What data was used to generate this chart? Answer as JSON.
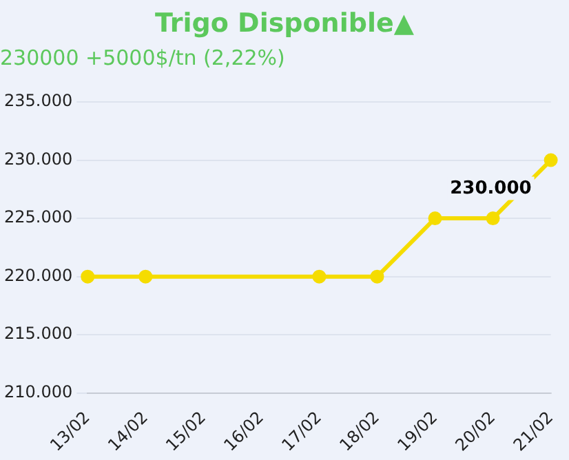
{
  "chart_data": {
    "type": "line",
    "title": "Trigo Disponible▲",
    "subtitle": "230000 +5000$/tn (2,22%)",
    "categories": [
      "13/02",
      "14/02",
      "15/02",
      "16/02",
      "17/02",
      "18/02",
      "19/02",
      "20/02",
      "21/02"
    ],
    "series": [
      {
        "color": "#f5dc00",
        "values": [
          220000,
          220000,
          null,
          null,
          220000,
          220000,
          225000,
          225000,
          230000
        ],
        "value_labels": [
          null,
          null,
          null,
          null,
          null,
          null,
          null,
          null,
          "230.000"
        ]
      }
    ],
    "ylim": [
      210000,
      235000
    ],
    "yticks": [
      {
        "value": 210000,
        "label": "210.000"
      },
      {
        "value": 215000,
        "label": "215.000"
      },
      {
        "value": 220000,
        "label": "220.000"
      },
      {
        "value": 225000,
        "label": "225.000"
      },
      {
        "value": 230000,
        "label": "230.000"
      },
      {
        "value": 235000,
        "label": "235.000"
      }
    ],
    "grid": "y",
    "legend": false,
    "marker": "circle",
    "line_style": "solid"
  }
}
